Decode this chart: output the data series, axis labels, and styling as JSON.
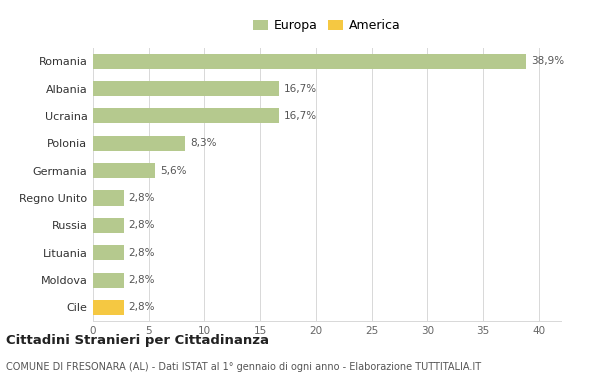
{
  "categories": [
    "Romania",
    "Albania",
    "Ucraina",
    "Polonia",
    "Germania",
    "Regno Unito",
    "Russia",
    "Lituania",
    "Moldova",
    "Cile"
  ],
  "values": [
    38.9,
    16.7,
    16.7,
    8.3,
    5.6,
    2.8,
    2.8,
    2.8,
    2.8,
    2.8
  ],
  "labels": [
    "38,9%",
    "16,7%",
    "16,7%",
    "8,3%",
    "5,6%",
    "2,8%",
    "2,8%",
    "2,8%",
    "2,8%",
    "2,8%"
  ],
  "colors": [
    "#b5c98e",
    "#b5c98e",
    "#b5c98e",
    "#b5c98e",
    "#b5c98e",
    "#b5c98e",
    "#b5c98e",
    "#b5c98e",
    "#b5c98e",
    "#f5c842"
  ],
  "europa_color": "#b5c98e",
  "america_color": "#f5c842",
  "legend_europa": "Europa",
  "legend_america": "America",
  "xlim": [
    0,
    42
  ],
  "xticks": [
    0,
    5,
    10,
    15,
    20,
    25,
    30,
    35,
    40
  ],
  "title": "Cittadini Stranieri per Cittadinanza",
  "subtitle": "COMUNE DI FRESONARA (AL) - Dati ISTAT al 1° gennaio di ogni anno - Elaborazione TUTTITALIA.IT",
  "background_color": "#ffffff",
  "grid_color": "#d8d8d8",
  "bar_height": 0.55
}
